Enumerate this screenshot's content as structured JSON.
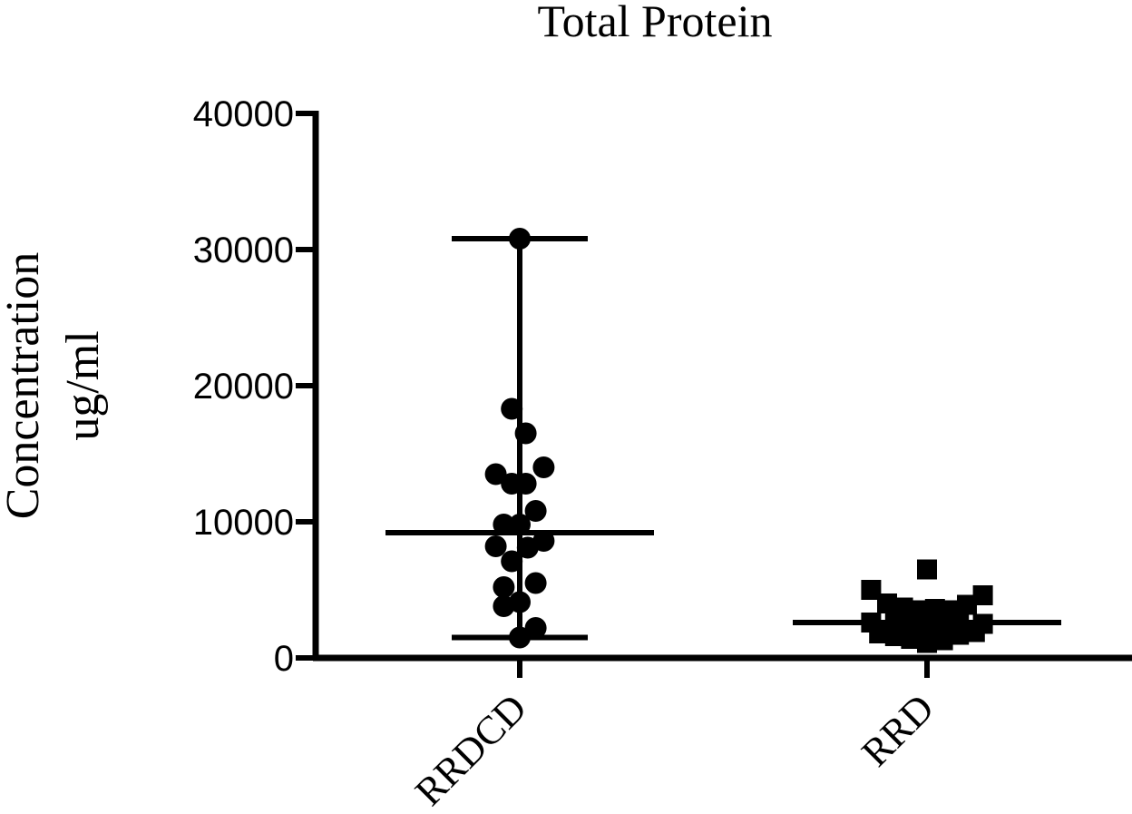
{
  "chart_data": {
    "type": "scatter",
    "title": "Total Protein",
    "ylabel_lines": [
      "Concentration",
      "ug/ml"
    ],
    "xlabel": "",
    "categories": [
      "RRDCD",
      "RRD"
    ],
    "ylim": [
      0,
      40000
    ],
    "yticks": [
      0,
      10000,
      20000,
      30000,
      40000
    ],
    "grid": false,
    "legend": "none",
    "series": [
      {
        "category": "RRDCD",
        "marker": "circle",
        "center": 9200,
        "range": [
          1500,
          30800
        ],
        "points": [
          {
            "dx": 0.0,
            "y": 30800
          },
          {
            "dx": -0.04,
            "y": 18300
          },
          {
            "dx": 0.03,
            "y": 16500
          },
          {
            "dx": -0.12,
            "y": 13500
          },
          {
            "dx": 0.12,
            "y": 14000
          },
          {
            "dx": -0.04,
            "y": 12800
          },
          {
            "dx": 0.03,
            "y": 12800
          },
          {
            "dx": 0.08,
            "y": 10800
          },
          {
            "dx": -0.08,
            "y": 9800
          },
          {
            "dx": 0.0,
            "y": 9800
          },
          {
            "dx": -0.12,
            "y": 8200
          },
          {
            "dx": 0.04,
            "y": 8100
          },
          {
            "dx": 0.12,
            "y": 8600
          },
          {
            "dx": -0.04,
            "y": 7100
          },
          {
            "dx": -0.08,
            "y": 5200
          },
          {
            "dx": 0.08,
            "y": 5500
          },
          {
            "dx": -0.08,
            "y": 3800
          },
          {
            "dx": 0.0,
            "y": 4100
          },
          {
            "dx": 0.08,
            "y": 2200
          },
          {
            "dx": 0.0,
            "y": 1500
          }
        ]
      },
      {
        "category": "RRD",
        "marker": "square",
        "center": 2600,
        "points": [
          {
            "dx": 0.0,
            "y": 6500
          },
          {
            "dx": -0.28,
            "y": 5000
          },
          {
            "dx": 0.28,
            "y": 4600
          },
          {
            "dx": -0.2,
            "y": 4000
          },
          {
            "dx": 0.2,
            "y": 3900
          },
          {
            "dx": -0.12,
            "y": 3700
          },
          {
            "dx": 0.04,
            "y": 3600
          },
          {
            "dx": -0.04,
            "y": 3500
          },
          {
            "dx": 0.12,
            "y": 3500
          },
          {
            "dx": -0.28,
            "y": 2600
          },
          {
            "dx": 0.28,
            "y": 2500
          },
          {
            "dx": -0.16,
            "y": 2800
          },
          {
            "dx": 0.16,
            "y": 2700
          },
          {
            "dx": -0.08,
            "y": 2700
          },
          {
            "dx": 0.08,
            "y": 2400
          },
          {
            "dx": 0.0,
            "y": 2600
          },
          {
            "dx": -0.24,
            "y": 1800
          },
          {
            "dx": 0.24,
            "y": 1900
          },
          {
            "dx": -0.16,
            "y": 1600
          },
          {
            "dx": 0.16,
            "y": 1700
          },
          {
            "dx": -0.08,
            "y": 1400
          },
          {
            "dx": 0.08,
            "y": 1300
          },
          {
            "dx": 0.0,
            "y": 1100
          },
          {
            "dx": -0.04,
            "y": 2000
          },
          {
            "dx": 0.04,
            "y": 1900
          },
          {
            "dx": -0.12,
            "y": 2200
          },
          {
            "dx": 0.12,
            "y": 2100
          }
        ]
      }
    ]
  }
}
